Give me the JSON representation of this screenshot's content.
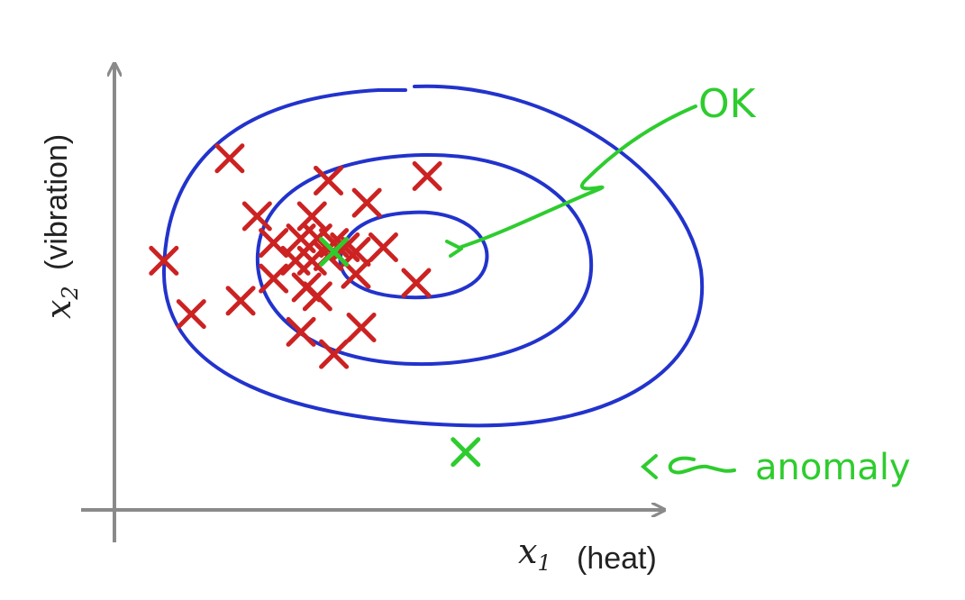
{
  "chart_data": {
    "type": "scatter",
    "x_axis": {
      "var": "x",
      "sub": "1",
      "label": "(heat)"
    },
    "y_axis": {
      "var": "x",
      "sub": "2",
      "label": "(vibration)"
    },
    "colors": {
      "axis": "#8a8a8a",
      "points": "#cc2222",
      "contours": "#2233cc",
      "annotation": "#2ecc2e"
    },
    "points": [
      {
        "x": 2.1,
        "y": 7.9
      },
      {
        "x": 3.9,
        "y": 7.4
      },
      {
        "x": 5.7,
        "y": 7.5
      },
      {
        "x": 2.6,
        "y": 6.6
      },
      {
        "x": 3.6,
        "y": 6.6
      },
      {
        "x": 4.6,
        "y": 6.9
      },
      {
        "x": 2.9,
        "y": 6.0
      },
      {
        "x": 3.4,
        "y": 6.1
      },
      {
        "x": 3.7,
        "y": 6.1
      },
      {
        "x": 4.0,
        "y": 6.0
      },
      {
        "x": 4.2,
        "y": 5.9
      },
      {
        "x": 0.9,
        "y": 5.6
      },
      {
        "x": 3.3,
        "y": 5.6
      },
      {
        "x": 3.6,
        "y": 5.6
      },
      {
        "x": 3.9,
        "y": 5.7
      },
      {
        "x": 4.4,
        "y": 5.8
      },
      {
        "x": 2.9,
        "y": 5.2
      },
      {
        "x": 3.5,
        "y": 5.0
      },
      {
        "x": 4.4,
        "y": 5.3
      },
      {
        "x": 5.5,
        "y": 5.1
      },
      {
        "x": 4.9,
        "y": 5.9
      },
      {
        "x": 2.3,
        "y": 4.7
      },
      {
        "x": 3.7,
        "y": 4.8
      },
      {
        "x": 1.4,
        "y": 4.4
      },
      {
        "x": 3.4,
        "y": 4.0
      },
      {
        "x": 4.5,
        "y": 4.1
      },
      {
        "x": 4.0,
        "y": 3.5
      }
    ],
    "test_points": [
      {
        "x": 4.0,
        "y": 5.8,
        "label": "ok"
      },
      {
        "x": 6.4,
        "y": 1.3,
        "label": "anomaly"
      }
    ]
  },
  "annotations": {
    "ok_text": "OK",
    "anomaly_text": "anomaly"
  }
}
